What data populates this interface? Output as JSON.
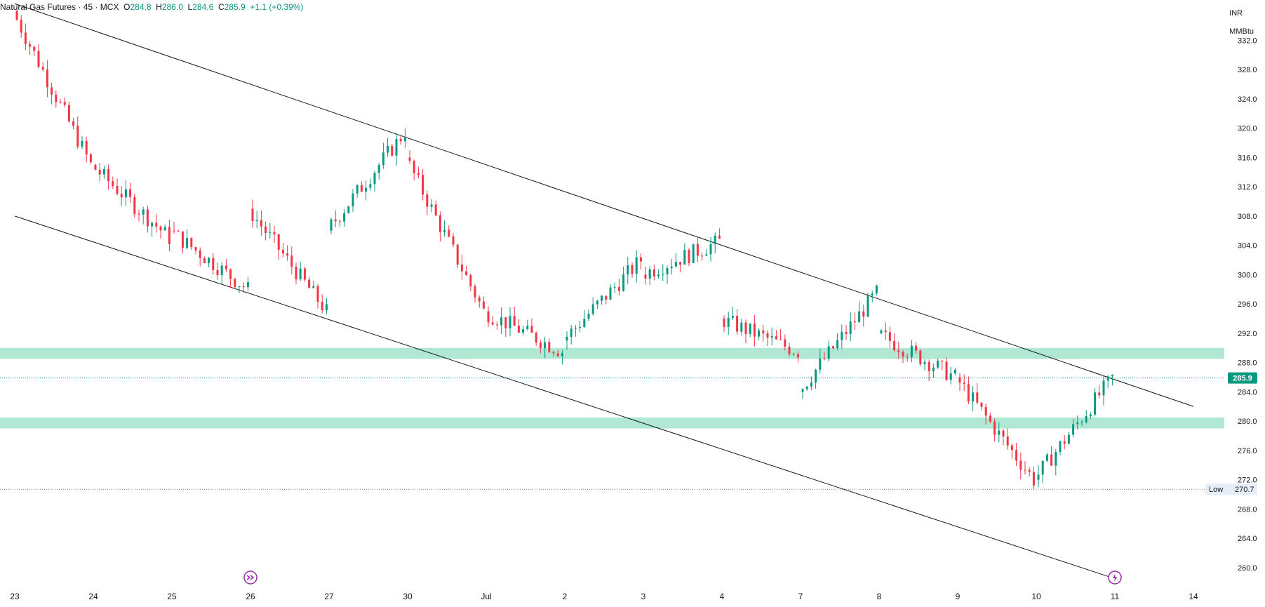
{
  "header": {
    "symbol": "Natural Gas Futures",
    "interval": "45",
    "exchange": "MCX",
    "o_label": "O",
    "open": "284.8",
    "h_label": "H",
    "high": "286.0",
    "l_label": "L",
    "low": "284.6",
    "c_label": "C",
    "close": "285.9",
    "change": "+1.1 (+0.39%)"
  },
  "price_scale": {
    "currency": "INR",
    "unit": "MMBtu"
  },
  "colors": {
    "up": "#089981",
    "down": "#f23645",
    "zone": "#a8e6cf",
    "trendline": "#131722",
    "last_price_bg": "#089981",
    "low_label_bg": "#e8eef7",
    "event_icon": "#9c27b0",
    "event_icon_alt": "#9c27b0"
  },
  "chart_data": {
    "type": "candlestick",
    "ylim": [
      257.5,
      337.5
    ],
    "y_ticks": [
      260,
      264,
      268,
      272,
      276,
      280,
      284,
      288,
      292,
      296,
      300,
      304,
      308,
      312,
      316,
      320,
      324,
      328,
      332
    ],
    "y_tick_labels": [
      "260.0",
      "264.0",
      "268.0",
      "272.0",
      "276.0",
      "280.0",
      "284.0",
      "288.0",
      "292.0",
      "296.0",
      "300.0",
      "304.0",
      "308.0",
      "312.0",
      "316.0",
      "320.0",
      "324.0",
      "328.0",
      "332.0"
    ],
    "x_categories": [
      "23",
      "24",
      "25",
      "26",
      "27",
      "30",
      "Jul",
      "2",
      "3",
      "4",
      "7",
      "8",
      "9",
      "10",
      "11",
      "14"
    ],
    "last_price": {
      "value": 285.9,
      "label": "285.9"
    },
    "low_marker": {
      "label": "Low",
      "value": 270.7,
      "value_label": "270.7"
    },
    "zones": [
      {
        "from": 288.5,
        "to": 290.0
      },
      {
        "from": 279.0,
        "to": 280.5
      }
    ],
    "trendlines": [
      {
        "from": [
          "23",
          337.0
        ],
        "to": [
          "14",
          282.0
        ]
      },
      {
        "from": [
          "23",
          308.0
        ],
        "to": [
          "11",
          258.5
        ]
      }
    ],
    "candle_runs": [
      {
        "from": "23",
        "to": "24",
        "start": 336.0,
        "end": 315.0,
        "dir": "down"
      },
      {
        "from": "24",
        "to": "25",
        "start": 315.0,
        "end": 305.0,
        "dir": "down"
      },
      {
        "from": "25",
        "to": "26",
        "start": 306.0,
        "end": 298.0,
        "dir": "down"
      },
      {
        "from": "26",
        "to": "27",
        "start": 309.0,
        "end": 295.0,
        "dir": "down"
      },
      {
        "from": "27",
        "to": "30",
        "start": 306.0,
        "end": 319.5,
        "dir": "up"
      },
      {
        "from": "30",
        "to": "Jul",
        "start": 316.0,
        "end": 295.0,
        "dir": "down"
      },
      {
        "from": "Jul",
        "to": "2",
        "start": 295.0,
        "end": 289.5,
        "dir": "down"
      },
      {
        "from": "2",
        "to": "3",
        "start": 291.0,
        "end": 302.0,
        "dir": "up"
      },
      {
        "from": "3",
        "to": "4",
        "start": 300.0,
        "end": 304.5,
        "dir": "up"
      },
      {
        "from": "4",
        "to": "7",
        "start": 294.0,
        "end": 289.5,
        "dir": "down"
      },
      {
        "from": "7",
        "to": "8",
        "start": 284.0,
        "end": 297.5,
        "dir": "up"
      },
      {
        "from": "8",
        "to": "9",
        "start": 292.0,
        "end": 286.0,
        "dir": "down"
      },
      {
        "from": "9",
        "to": "10",
        "start": 286.0,
        "end": 272.0,
        "dir": "down"
      },
      {
        "from": "10",
        "to": "11",
        "start": 272.0,
        "end": 285.9,
        "dir": "up"
      }
    ],
    "event_markers": [
      {
        "x": "26",
        "icon": "fast-forward-icon"
      },
      {
        "x": "11",
        "icon": "lightning-icon"
      }
    ]
  }
}
